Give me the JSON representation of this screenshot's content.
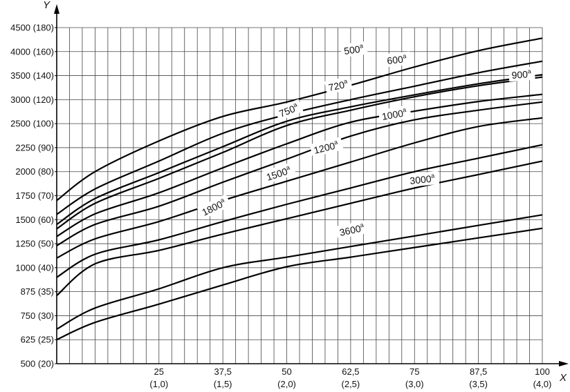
{
  "chart_data": {
    "type": "line",
    "x_label": "X",
    "y_label": "Y",
    "x_range": [
      5,
      100
    ],
    "x_ticks": [
      {
        "value": 25,
        "label": "25",
        "sublabel": "(1,0)"
      },
      {
        "value": 37.5,
        "label": "37,5",
        "sublabel": "(1,5)"
      },
      {
        "value": 50,
        "label": "50",
        "sublabel": "(2,0)"
      },
      {
        "value": 62.5,
        "label": "62,5",
        "sublabel": "(2,5)"
      },
      {
        "value": 75,
        "label": "75",
        "sublabel": "(3,0)"
      },
      {
        "value": 87.5,
        "label": "87,5",
        "sublabel": "(3,5)"
      },
      {
        "value": 100,
        "label": "100",
        "sublabel": "(4,0)"
      }
    ],
    "y_ticks": [
      {
        "value": 500,
        "label": "500 (20)"
      },
      {
        "value": 625,
        "label": "625 (25)"
      },
      {
        "value": 750,
        "label": "750 (30)"
      },
      {
        "value": 875,
        "label": "875 (35)"
      },
      {
        "value": 1000,
        "label": "1000 (40)"
      },
      {
        "value": 1250,
        "label": "1250 (50)"
      },
      {
        "value": 1500,
        "label": "1500 (60)"
      },
      {
        "value": 1750,
        "label": "1750 (70)"
      },
      {
        "value": 2000,
        "label": "2000 (80)"
      },
      {
        "value": 2250,
        "label": "2250 (90)"
      },
      {
        "value": 2500,
        "label": "2500 (100)"
      },
      {
        "value": 3000,
        "label": "3000 (120)"
      },
      {
        "value": 3500,
        "label": "3500 (140)"
      },
      {
        "value": 4000,
        "label": "4000 (160)"
      },
      {
        "value": 4500,
        "label": "4500 (180)"
      }
    ],
    "grid": true,
    "series": [
      {
        "name": "500",
        "sup": "a",
        "x": [
          5,
          12.5,
          25,
          37.5,
          50,
          62.5,
          75,
          87.5,
          100
        ],
        "y": [
          1700,
          2000,
          2320,
          2650,
          2950,
          3300,
          3680,
          4020,
          4280
        ]
      },
      {
        "name": "600",
        "sup": "a",
        "x": [
          5,
          12.5,
          25,
          37.5,
          50,
          62.5,
          75,
          87.5,
          100
        ],
        "y": [
          1555,
          1820,
          2110,
          2400,
          2690,
          3000,
          3280,
          3560,
          3800
        ]
      },
      {
        "name": "720",
        "sup": "a",
        "x": [
          5,
          12.5,
          25,
          37.5,
          50,
          62.5,
          75,
          87.5,
          100
        ],
        "y": [
          1450,
          1720,
          1990,
          2260,
          2550,
          2850,
          3100,
          3330,
          3520
        ]
      },
      {
        "name": "750",
        "sup": "a",
        "x": [
          5,
          12.5,
          25,
          37.5,
          50,
          62.5,
          75,
          87.5,
          100
        ],
        "y": [
          1405,
          1670,
          1930,
          2200,
          2480,
          2780,
          3060,
          3290,
          3470
        ]
      },
      {
        "name": "900",
        "sup": "a",
        "x": [
          5,
          12.5,
          25,
          37.5,
          50,
          62.5,
          75,
          87.5,
          100
        ],
        "y": [
          1325,
          1560,
          1780,
          2040,
          2290,
          2530,
          2760,
          2960,
          3110
        ]
      },
      {
        "name": "1000",
        "sup": "a",
        "x": [
          5,
          12.5,
          25,
          37.5,
          50,
          62.5,
          75,
          87.5,
          100
        ],
        "y": [
          1230,
          1450,
          1640,
          1890,
          2130,
          2370,
          2580,
          2780,
          2950
        ]
      },
      {
        "name": "1200",
        "sup": "a",
        "x": [
          5,
          12.5,
          25,
          37.5,
          50,
          62.5,
          75,
          87.5,
          100
        ],
        "y": [
          1100,
          1300,
          1480,
          1700,
          1900,
          2100,
          2300,
          2470,
          2620
        ]
      },
      {
        "name": "1500",
        "sup": "a",
        "x": [
          5,
          12.5,
          25,
          37.5,
          50,
          62.5,
          75,
          87.5,
          100
        ],
        "y": [
          950,
          1140,
          1290,
          1480,
          1660,
          1830,
          2000,
          2140,
          2280
        ]
      },
      {
        "name": "1800",
        "sup": "a",
        "x": [
          5,
          12.5,
          25,
          37.5,
          50,
          62.5,
          75,
          87.5,
          100
        ],
        "y": [
          855,
          1040,
          1180,
          1350,
          1510,
          1670,
          1830,
          1970,
          2110
        ]
      },
      {
        "name": "3000",
        "sup": "a",
        "x": [
          5,
          12.5,
          25,
          37.5,
          50,
          62.5,
          75,
          87.5,
          100
        ],
        "y": [
          680,
          790,
          890,
          1000,
          1110,
          1220,
          1330,
          1440,
          1550
        ]
      },
      {
        "name": "3600",
        "sup": "a",
        "x": [
          5,
          12.5,
          25,
          37.5,
          50,
          62.5,
          75,
          87.5,
          100
        ],
        "y": [
          625,
          715,
          810,
          910,
          1010,
          1110,
          1210,
          1310,
          1410
        ]
      }
    ]
  }
}
